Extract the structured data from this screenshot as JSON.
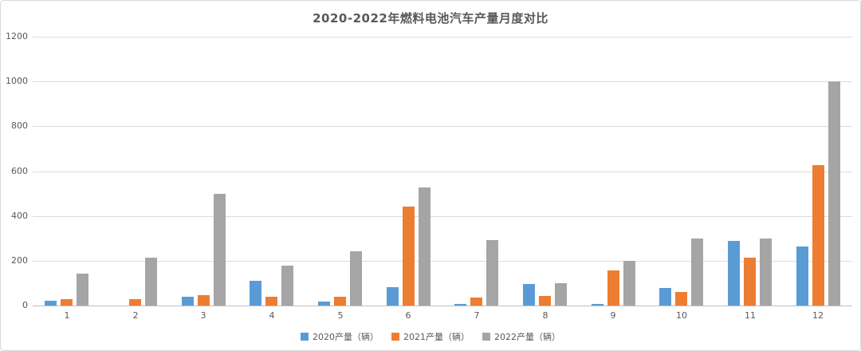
{
  "chart_data": {
    "type": "bar",
    "title": "2020-2022年燃料电池汽车产量月度对比",
    "categories": [
      "1",
      "2",
      "3",
      "4",
      "5",
      "6",
      "7",
      "8",
      "9",
      "10",
      "11",
      "12"
    ],
    "series": [
      {
        "name": "2020产量（辆）",
        "color": "#5B9BD5",
        "values": [
          22,
          0,
          40,
          110,
          18,
          81,
          7,
          97,
          8,
          78,
          288,
          265
        ]
      },
      {
        "name": "2021产量（辆）",
        "color": "#ED7D31",
        "values": [
          30,
          28,
          46,
          40,
          40,
          440,
          35,
          42,
          155,
          60,
          214,
          627
        ]
      },
      {
        "name": "2022产量（辆）",
        "color": "#A5A5A5",
        "values": [
          142,
          213,
          500,
          178,
          242,
          527,
          292,
          99,
          199,
          300,
          300,
          1000
        ]
      }
    ],
    "xlabel": "",
    "ylabel": "",
    "ylim": [
      0,
      1200
    ],
    "ytick_interval": 200,
    "yticks": [
      0,
      200,
      400,
      600,
      800,
      1000,
      1200
    ],
    "grid": true,
    "legend_position": "bottom"
  },
  "style": {
    "gridline_color": "#dcdcdc",
    "axis_line_color": "#bfbfbf",
    "text_color": "#595959",
    "background_color": "#ffffff",
    "border_color": "#d9d9d9"
  }
}
